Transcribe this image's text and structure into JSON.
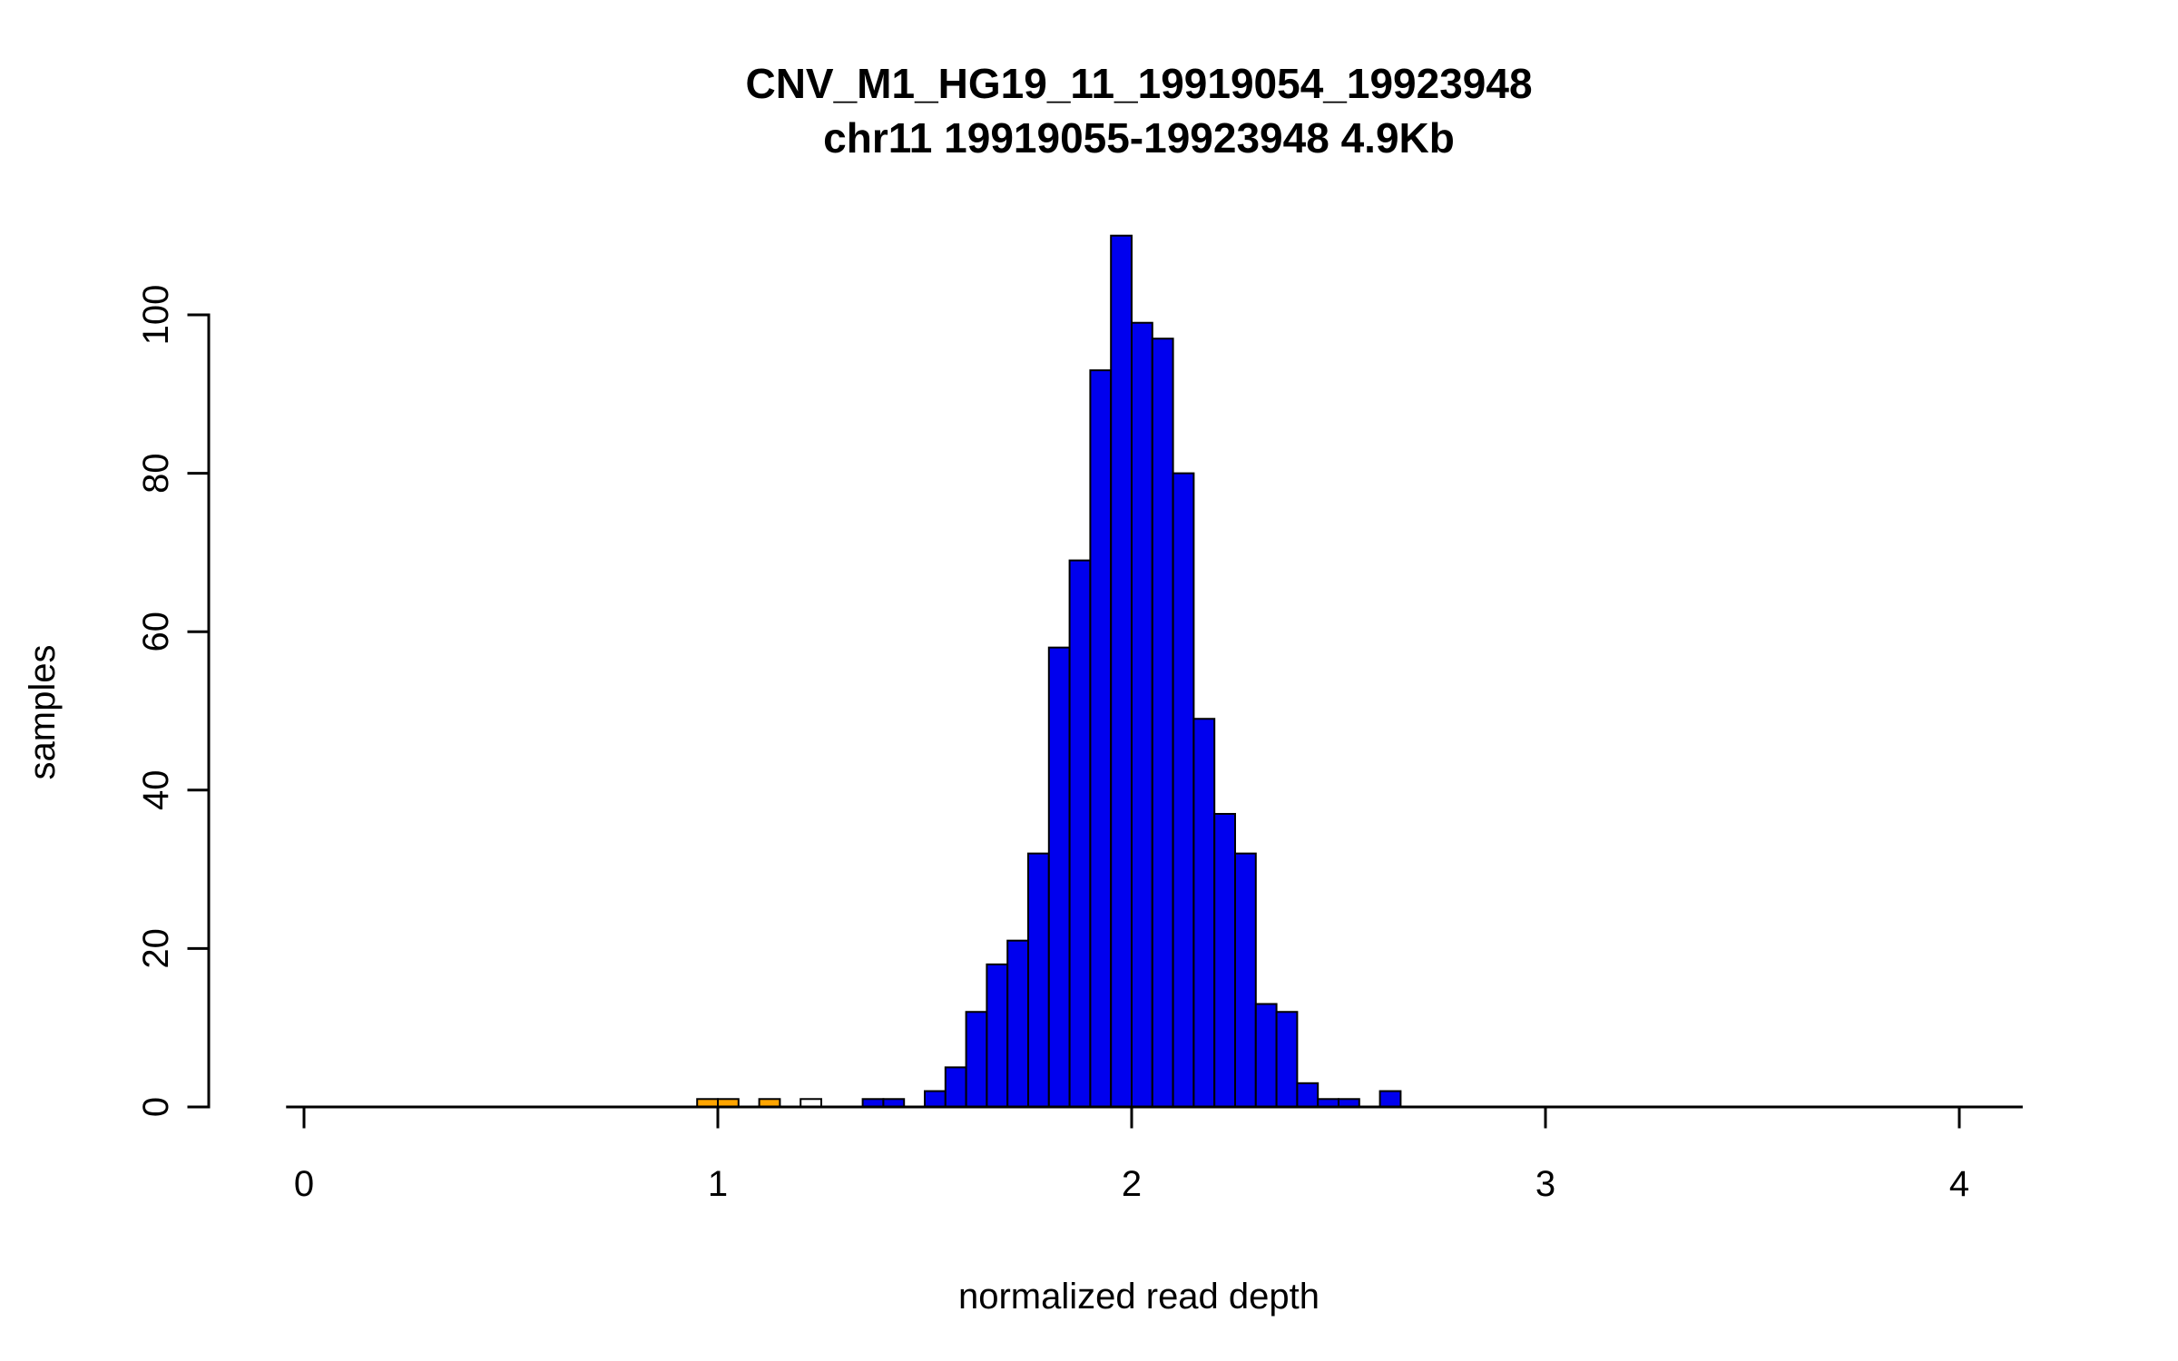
{
  "chart_data": {
    "type": "bar",
    "subtype": "histogram",
    "title": "CNV_M1_HG19_11_19919054_19923948",
    "subtitle": "chr11 19919055-19923948 4.9Kb",
    "xlabel": "normalized read depth",
    "ylabel": "samples",
    "xlim": [
      0,
      4.15
    ],
    "ylim": [
      0,
      110
    ],
    "x_ticks": [
      0,
      1,
      2,
      3,
      4
    ],
    "y_ticks": [
      0,
      20,
      40,
      60,
      80,
      100
    ],
    "bin_width": 0.05,
    "grid": false,
    "legend": false,
    "colors": {
      "bar_default": "#0000EE",
      "bar_highlight": "#FFA500",
      "bar_empty": "#FFFFFF",
      "bar_outline": "#000000",
      "background": "#FFFFFF",
      "text": "#000000"
    },
    "bars": [
      {
        "x": 0.95,
        "count": 1,
        "color": "#FFA500"
      },
      {
        "x": 1.0,
        "count": 1,
        "color": "#FFA500"
      },
      {
        "x": 1.1,
        "count": 1,
        "color": "#FFA500"
      },
      {
        "x": 1.2,
        "count": 1,
        "color": "#FFFFFF"
      },
      {
        "x": 1.35,
        "count": 1,
        "color": "#0000EE"
      },
      {
        "x": 1.4,
        "count": 1,
        "color": "#0000EE"
      },
      {
        "x": 1.5,
        "count": 2,
        "color": "#0000EE"
      },
      {
        "x": 1.55,
        "count": 5,
        "color": "#0000EE"
      },
      {
        "x": 1.6,
        "count": 12,
        "color": "#0000EE"
      },
      {
        "x": 1.65,
        "count": 18,
        "color": "#0000EE"
      },
      {
        "x": 1.7,
        "count": 21,
        "color": "#0000EE"
      },
      {
        "x": 1.75,
        "count": 32,
        "color": "#0000EE"
      },
      {
        "x": 1.8,
        "count": 58,
        "color": "#0000EE"
      },
      {
        "x": 1.85,
        "count": 69,
        "color": "#0000EE"
      },
      {
        "x": 1.9,
        "count": 93,
        "color": "#0000EE"
      },
      {
        "x": 1.95,
        "count": 110,
        "color": "#0000EE"
      },
      {
        "x": 2.0,
        "count": 99,
        "color": "#0000EE"
      },
      {
        "x": 2.05,
        "count": 97,
        "color": "#0000EE"
      },
      {
        "x": 2.1,
        "count": 80,
        "color": "#0000EE"
      },
      {
        "x": 2.15,
        "count": 49,
        "color": "#0000EE"
      },
      {
        "x": 2.2,
        "count": 37,
        "color": "#0000EE"
      },
      {
        "x": 2.25,
        "count": 32,
        "color": "#0000EE"
      },
      {
        "x": 2.3,
        "count": 13,
        "color": "#0000EE"
      },
      {
        "x": 2.35,
        "count": 12,
        "color": "#0000EE"
      },
      {
        "x": 2.4,
        "count": 3,
        "color": "#0000EE"
      },
      {
        "x": 2.45,
        "count": 1,
        "color": "#0000EE"
      },
      {
        "x": 2.5,
        "count": 1,
        "color": "#0000EE"
      },
      {
        "x": 2.6,
        "count": 2,
        "color": "#0000EE"
      }
    ]
  }
}
